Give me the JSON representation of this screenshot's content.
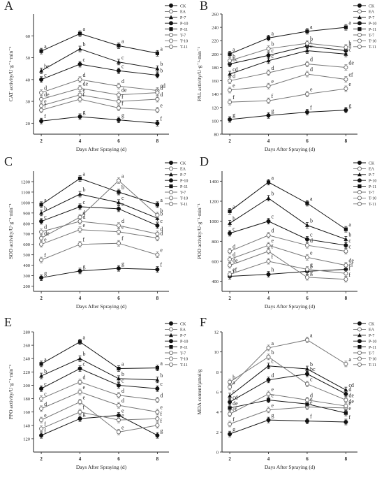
{
  "figure": {
    "x_label": "Days After Spraying (d)"
  },
  "legend": [
    "CK",
    "EA",
    "P-7",
    "P-10",
    "P-11",
    "T-7",
    "T-10",
    "T-11"
  ],
  "chart_data": [
    {
      "type": "line",
      "panel": "A",
      "ylabel": "CAT activity/U·g⁻¹·min⁻¹",
      "x": [
        2,
        4,
        6,
        8
      ],
      "xticks": [
        "2",
        "4",
        "6",
        "8"
      ],
      "ylim": [
        15,
        70
      ],
      "yticks": [
        20,
        30,
        40,
        50,
        60
      ],
      "series": [
        {
          "name": "CK",
          "values": [
            21,
            23,
            21.5,
            20
          ],
          "letters": [
            "f",
            "g",
            "g",
            "f"
          ]
        },
        {
          "name": "EA",
          "values": [
            34,
            40,
            37,
            35
          ],
          "letters": [
            "d",
            "d",
            "d",
            "cd"
          ]
        },
        {
          "name": "P-7",
          "values": [
            44,
            54,
            48,
            45
          ],
          "letters": [
            "bc",
            "b",
            "c",
            "b"
          ]
        },
        {
          "name": "P-10",
          "values": [
            40,
            47,
            44,
            42
          ],
          "letters": [
            "c",
            "c",
            "c",
            "b"
          ]
        },
        {
          "name": "P-11",
          "values": [
            53,
            61,
            55.5,
            52
          ],
          "letters": [
            "a",
            "a",
            "a",
            "a"
          ]
        },
        {
          "name": "T-7",
          "values": [
            31,
            36,
            33,
            34
          ],
          "letters": [
            "de",
            "de",
            "de",
            "d"
          ]
        },
        {
          "name": "T-10",
          "values": [
            28,
            33,
            30,
            31
          ],
          "letters": [
            "e",
            "e",
            "f",
            "d"
          ]
        },
        {
          "name": "T-11",
          "values": [
            26,
            31,
            27,
            26
          ],
          "letters": [
            "f",
            "f",
            "f",
            "e"
          ]
        }
      ]
    },
    {
      "type": "line",
      "panel": "B",
      "ylabel": "PAL activity/U·g⁻¹·min⁻¹",
      "x": [
        2,
        4,
        6,
        8
      ],
      "xticks": [
        "2",
        "4",
        "6",
        "8"
      ],
      "ylim": [
        80,
        260
      ],
      "yticks": [
        80,
        100,
        120,
        140,
        160,
        180,
        200,
        220,
        240,
        260
      ],
      "series": [
        {
          "name": "CK",
          "values": [
            102,
            108,
            113,
            116
          ],
          "letters": [
            "g",
            "g",
            "f",
            "g"
          ]
        },
        {
          "name": "EA",
          "values": [
            128,
            130,
            140,
            148
          ],
          "letters": [
            "f",
            "f",
            "e",
            "e"
          ]
        },
        {
          "name": "P-7",
          "values": [
            170,
            190,
            205,
            200
          ],
          "letters": [
            "cd",
            "c",
            "c",
            "c"
          ]
        },
        {
          "name": "P-10",
          "values": [
            185,
            198,
            212,
            205
          ],
          "letters": [
            "bc",
            "c",
            "c",
            "d"
          ]
        },
        {
          "name": "P-11",
          "values": [
            200,
            224,
            234,
            240
          ],
          "letters": [
            "a",
            "a",
            "a",
            "a"
          ]
        },
        {
          "name": "T-7",
          "values": [
            190,
            208,
            216,
            210
          ],
          "letters": [
            "b",
            "b",
            "b",
            "b"
          ]
        },
        {
          "name": "T-10",
          "values": [
            160,
            172,
            185,
            180
          ],
          "letters": [
            "d",
            "d",
            "d",
            "de"
          ]
        },
        {
          "name": "T-11",
          "values": [
            146,
            152,
            170,
            162
          ],
          "letters": [
            "e",
            "e",
            "d",
            "ef"
          ]
        }
      ]
    },
    {
      "type": "line",
      "panel": "C",
      "ylabel": "SOD activity/U·g⁻¹·min⁻¹",
      "x": [
        2,
        4,
        6,
        8
      ],
      "xticks": [
        "2",
        "4",
        "6",
        "8"
      ],
      "ylim": [
        150,
        1300
      ],
      "yticks": [
        200,
        300,
        400,
        500,
        600,
        700,
        800,
        900,
        1000,
        1100,
        1200
      ],
      "series": [
        {
          "name": "CK",
          "values": [
            280,
            345,
            370,
            360
          ],
          "letters": [
            "g",
            "g",
            "g",
            "f"
          ]
        },
        {
          "name": "EA",
          "values": [
            450,
            600,
            610,
            500
          ],
          "letters": [
            "f",
            "f",
            "f",
            "e"
          ]
        },
        {
          "name": "P-7",
          "values": [
            900,
            1080,
            1000,
            850
          ],
          "letters": [
            "b",
            "b",
            "c",
            "b"
          ]
        },
        {
          "name": "P-10",
          "values": [
            820,
            960,
            940,
            780
          ],
          "letters": [
            "c",
            "c",
            "c",
            "c"
          ]
        },
        {
          "name": "P-11",
          "values": [
            980,
            1230,
            1100,
            980
          ],
          "letters": [
            "a",
            "a",
            "b",
            "a"
          ]
        },
        {
          "name": "T-7",
          "values": [
            600,
            740,
            720,
            660
          ],
          "letters": [
            "e",
            "e",
            "e",
            "d"
          ]
        },
        {
          "name": "T-10",
          "values": [
            660,
            860,
            1210,
            880
          ],
          "letters": [
            "de",
            "d",
            "a",
            "b"
          ]
        },
        {
          "name": "T-11",
          "values": [
            720,
            820,
            780,
            700
          ],
          "letters": [
            "d",
            "d",
            "d",
            "d"
          ]
        }
      ]
    },
    {
      "type": "line",
      "panel": "D",
      "ylabel": "POD activity/U·g⁻¹·min⁻¹",
      "x": [
        2,
        4,
        6,
        8
      ],
      "xticks": [
        "2",
        "4",
        "6",
        "8"
      ],
      "ylim": [
        300,
        1500
      ],
      "yticks": [
        400,
        600,
        800,
        1000,
        1200,
        1400
      ],
      "series": [
        {
          "name": "CK",
          "values": [
            450,
            470,
            500,
            520
          ],
          "letters": [
            "f",
            "h",
            "f",
            "ef"
          ]
        },
        {
          "name": "EA",
          "values": [
            470,
            600,
            520,
            480
          ],
          "letters": [
            "ef",
            "f",
            "g",
            "f"
          ]
        },
        {
          "name": "P-7",
          "values": [
            980,
            1230,
            960,
            820
          ],
          "letters": [
            "b",
            "b",
            "b",
            "b"
          ]
        },
        {
          "name": "P-10",
          "values": [
            880,
            1000,
            820,
            760
          ],
          "letters": [
            "c",
            "c",
            "c",
            "c"
          ]
        },
        {
          "name": "P-11",
          "values": [
            1100,
            1390,
            1180,
            920
          ],
          "letters": [
            "a",
            "a",
            "a",
            "a"
          ]
        },
        {
          "name": "T-7",
          "values": [
            700,
            860,
            760,
            700
          ],
          "letters": [
            "d",
            "d",
            "d",
            "c"
          ]
        },
        {
          "name": "T-10",
          "values": [
            620,
            760,
            640,
            560
          ],
          "letters": [
            "d",
            "e",
            "e",
            "de"
          ]
        },
        {
          "name": "T-11",
          "values": [
            560,
            700,
            440,
            420
          ],
          "letters": [
            "de",
            "f",
            "g",
            "f"
          ]
        }
      ]
    },
    {
      "type": "line",
      "panel": "E",
      "ylabel": "PPO activity/U·g⁻¹·min⁻¹",
      "x": [
        2,
        4,
        6,
        8
      ],
      "xticks": [
        "2",
        "4",
        "6",
        "8"
      ],
      "ylim": [
        100,
        280
      ],
      "yticks": [
        120,
        140,
        160,
        180,
        200,
        220,
        240,
        260,
        280
      ],
      "series": [
        {
          "name": "CK",
          "values": [
            125,
            150,
            155,
            125
          ],
          "letters": [
            "f",
            "g",
            "e",
            "g"
          ]
        },
        {
          "name": "EA",
          "values": [
            135,
            160,
            148,
            150
          ],
          "letters": [
            "f",
            "f",
            "e",
            "f"
          ]
        },
        {
          "name": "P-7",
          "values": [
            214,
            240,
            210,
            208
          ],
          "letters": [
            "b",
            "b",
            "b",
            "b"
          ]
        },
        {
          "name": "P-10",
          "values": [
            195,
            225,
            200,
            195
          ],
          "letters": [
            "c",
            "c",
            "c",
            "c"
          ]
        },
        {
          "name": "P-11",
          "values": [
            232,
            265,
            225,
            226
          ],
          "letters": [
            "a",
            "a",
            "a",
            "a"
          ]
        },
        {
          "name": "T-7",
          "values": [
            180,
            205,
            185,
            178
          ],
          "letters": [
            "c",
            "d",
            "d",
            "d"
          ]
        },
        {
          "name": "T-10",
          "values": [
            165,
            190,
            170,
            160
          ],
          "letters": [
            "d",
            "e",
            "d",
            "e"
          ]
        },
        {
          "name": "T-11",
          "values": [
            148,
            175,
            130,
            140
          ],
          "letters": [
            "e",
            "e",
            "e",
            "f"
          ]
        }
      ]
    },
    {
      "type": "line",
      "panel": "F",
      "ylabel": "MDA content/µmol/g",
      "x": [
        2,
        4,
        6,
        8
      ],
      "xticks": [
        "2",
        "4",
        "6",
        "8"
      ],
      "ylim": [
        0,
        12
      ],
      "yticks": [
        0,
        2,
        4,
        6,
        8,
        10,
        12
      ],
      "series": [
        {
          "name": "CK",
          "values": [
            1.8,
            3.2,
            3.1,
            3.0
          ],
          "letters": [
            "g",
            "g",
            "f",
            "f"
          ]
        },
        {
          "name": "EA",
          "values": [
            2.8,
            4.2,
            4.5,
            4.4
          ],
          "letters": [
            "f",
            "e",
            "e",
            "e"
          ]
        },
        {
          "name": "P-7",
          "values": [
            5.6,
            8.6,
            8.3,
            6.2
          ],
          "letters": [
            "c",
            "c",
            "b",
            "cd"
          ]
        },
        {
          "name": "P-10",
          "values": [
            5.0,
            7.2,
            7.8,
            5.8
          ],
          "letters": [
            "cd",
            "d",
            "bc",
            "d"
          ]
        },
        {
          "name": "P-11",
          "values": [
            4.4,
            5.2,
            4.8,
            3.9
          ],
          "letters": [
            "de",
            "e",
            "e",
            "e"
          ]
        },
        {
          "name": "T-7",
          "values": [
            3.8,
            5.8,
            5.2,
            4.6
          ],
          "letters": [
            "ef",
            "e",
            "d",
            "de"
          ]
        },
        {
          "name": "T-10",
          "values": [
            6.5,
            10.4,
            11.2,
            8.8
          ],
          "letters": [
            "a",
            "a",
            "a",
            "a"
          ]
        },
        {
          "name": "T-11",
          "values": [
            7.0,
            9.5,
            6.8,
            5.2
          ],
          "letters": [
            "b",
            "b",
            "c",
            "de"
          ]
        }
      ]
    }
  ]
}
